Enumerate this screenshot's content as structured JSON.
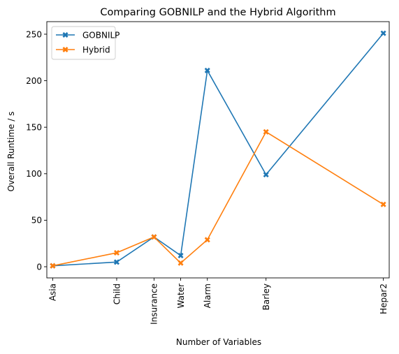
{
  "chart_data": {
    "type": "line",
    "title": "Comparing GOBNILP and the Hybrid Algorithm",
    "xlabel": "Number of Variables",
    "ylabel": "Overall Runtime / s",
    "categories": [
      "Asia",
      "Child",
      "Insurance",
      "Water",
      "Alarm",
      "Barley",
      "Hepar2"
    ],
    "x": [
      8,
      20,
      27,
      32,
      37,
      48,
      70
    ],
    "xlim": [
      6.9,
      71.1
    ],
    "ylim": [
      -12,
      263.5
    ],
    "yticks": [
      0,
      50,
      100,
      150,
      200,
      250
    ],
    "grid": false,
    "legend_position": "top-left",
    "series": [
      {
        "name": "GOBNILP",
        "color": "#1f77b4",
        "marker": "X",
        "values": [
          1,
          5,
          32,
          12,
          211,
          99,
          251
        ]
      },
      {
        "name": "Hybrid",
        "color": "#ff7f0e",
        "marker": "X",
        "values": [
          1,
          15,
          32,
          4,
          29,
          145,
          67
        ]
      }
    ]
  }
}
